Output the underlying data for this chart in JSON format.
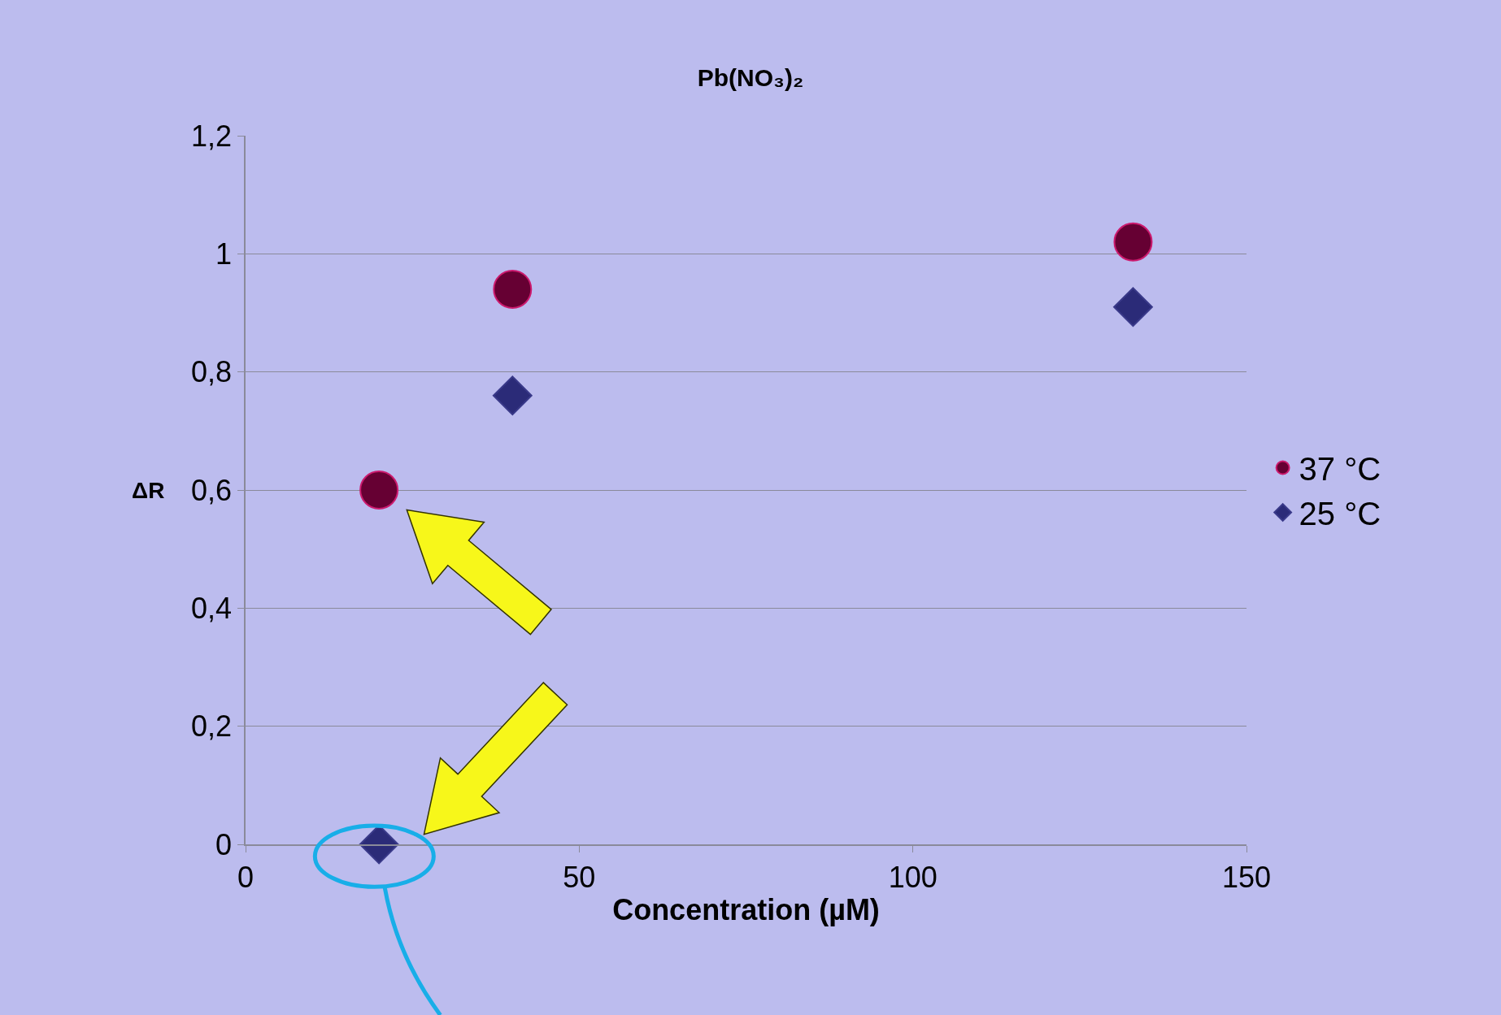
{
  "chart_data": {
    "type": "scatter",
    "title": "Pb(NO₃)₂",
    "xlabel": "Concentration (µM)",
    "ylabel": "ΔR",
    "x": [
      20,
      40,
      133
    ],
    "series": [
      {
        "name": "37 °C",
        "color": "#660033",
        "marker": "circle",
        "values": [
          0.6,
          0.94,
          1.02
        ]
      },
      {
        "name": "25 °C",
        "color": "#2b2b78",
        "marker": "diamond",
        "values": [
          0.0,
          0.76,
          0.91
        ]
      }
    ],
    "xlim": [
      0,
      150
    ],
    "xticks": [
      0,
      50,
      100,
      150
    ],
    "ylim": [
      0,
      1.2
    ],
    "yticks": [
      0,
      {
        "value": 0.2,
        "label": "0,2"
      },
      {
        "value": 0.4,
        "label": "0,4"
      },
      {
        "value": 0.6,
        "label": "0,6"
      },
      {
        "value": 0.8,
        "label": "0,8"
      },
      1,
      {
        "value": 1.2,
        "label": "1,2"
      }
    ],
    "grid": "y",
    "legend": "right"
  }
}
